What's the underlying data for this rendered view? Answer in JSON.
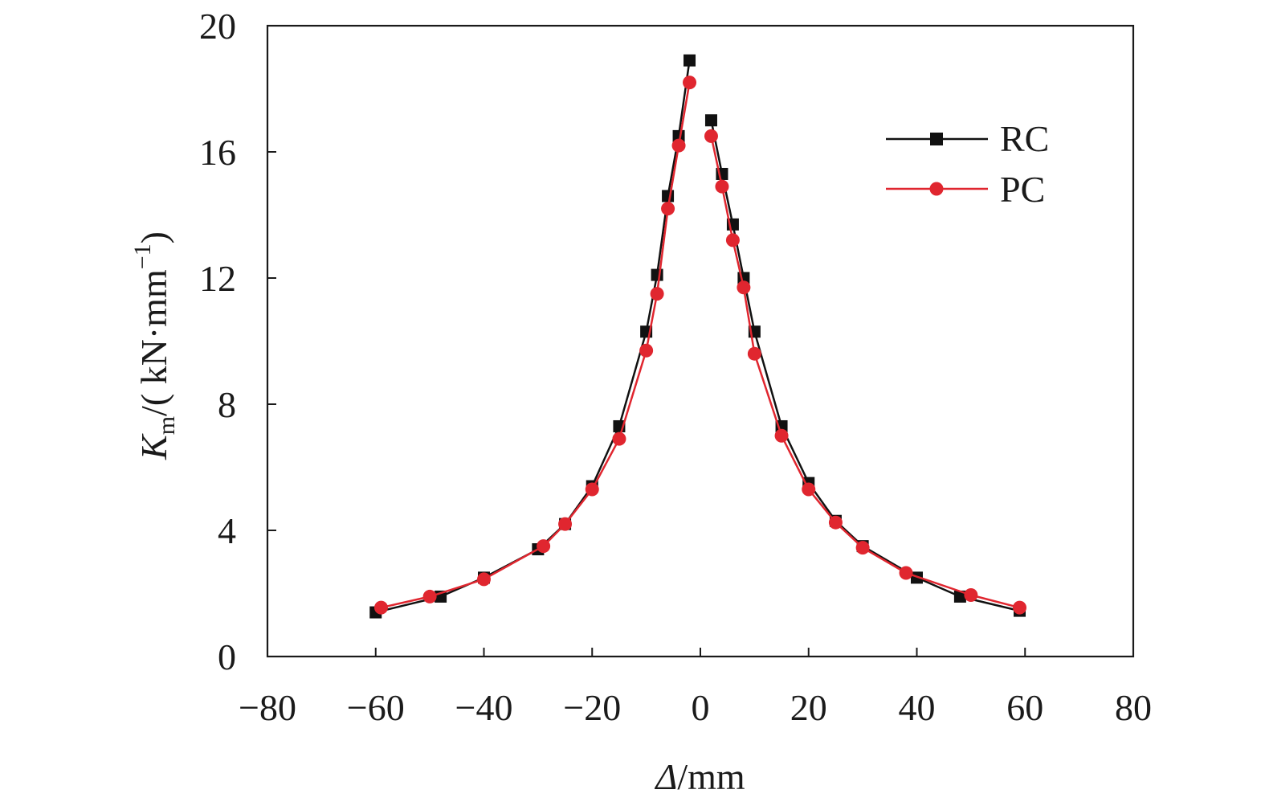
{
  "chart_data": {
    "type": "line",
    "title": "",
    "xlabel": {
      "symbol": "Δ",
      "unit": "/mm"
    },
    "ylabel": {
      "symbol": "K",
      "subscript": "m",
      "unit_prefix": "/( kN·mm",
      "superscript": "−1",
      "unit_suffix": ")"
    },
    "xlim": [
      -80,
      80
    ],
    "ylim": [
      0,
      20
    ],
    "xticks": [
      -80,
      -60,
      -40,
      -20,
      0,
      20,
      40,
      60,
      80
    ],
    "xtick_labels": [
      "−80",
      "−60",
      "−40",
      "−20",
      "0",
      "20",
      "40",
      "60",
      "80"
    ],
    "yticks": [
      0,
      4,
      8,
      12,
      16,
      20
    ],
    "ytick_labels": [
      "0",
      "4",
      "8",
      "12",
      "16",
      "20"
    ],
    "grid": false,
    "legend_position": "top-right",
    "series": [
      {
        "name": "RC",
        "color": "#111111",
        "marker": "square",
        "branches": [
          {
            "x": [
              -60,
              -48,
              -40,
              -30,
              -25,
              -20,
              -15,
              -10,
              -8,
              -6,
              -4,
              -2
            ],
            "y": [
              1.4,
              1.9,
              2.5,
              3.4,
              4.2,
              5.4,
              7.3,
              10.3,
              12.1,
              14.6,
              16.5,
              18.9
            ]
          },
          {
            "x": [
              2,
              4,
              6,
              8,
              10,
              15,
              20,
              25,
              30,
              40,
              48,
              59
            ],
            "y": [
              17.0,
              15.3,
              13.7,
              12.0,
              10.3,
              7.3,
              5.5,
              4.3,
              3.5,
              2.5,
              1.9,
              1.45
            ]
          }
        ]
      },
      {
        "name": "PC",
        "color": "#e0262f",
        "marker": "circle",
        "branches": [
          {
            "x": [
              -59,
              -50,
              -40,
              -29,
              -25,
              -20,
              -15,
              -10,
              -8,
              -6,
              -4,
              -2
            ],
            "y": [
              1.55,
              1.9,
              2.45,
              3.5,
              4.2,
              5.3,
              6.9,
              9.7,
              11.5,
              14.2,
              16.2,
              18.2
            ]
          },
          {
            "x": [
              2,
              4,
              6,
              8,
              10,
              15,
              20,
              25,
              30,
              38,
              50,
              59
            ],
            "y": [
              16.5,
              14.9,
              13.2,
              11.7,
              9.6,
              7.0,
              5.3,
              4.25,
              3.45,
              2.65,
              1.95,
              1.55
            ]
          }
        ]
      }
    ]
  }
}
